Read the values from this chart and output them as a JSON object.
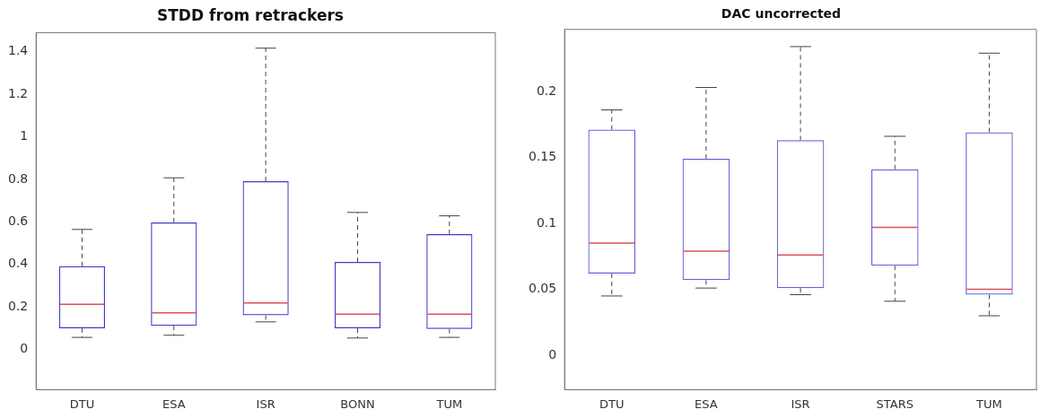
{
  "chart_data": [
    {
      "type": "box",
      "title": "STDD from retrackers",
      "categories": [
        "DTU",
        "ESA",
        "ISR",
        "BONN",
        "TUM"
      ],
      "color": "#3c3cc8",
      "boxes": [
        {
          "low": 0.056,
          "q1": 0.099,
          "median": 0.212,
          "q3": 0.391,
          "high": 0.564
        },
        {
          "low": 0.066,
          "q1": 0.111,
          "median": 0.172,
          "q3": 0.597,
          "high": 0.807
        },
        {
          "low": 0.129,
          "q1": 0.16,
          "median": 0.218,
          "q3": 0.791,
          "high": 1.417
        },
        {
          "low": 0.053,
          "q1": 0.099,
          "median": 0.165,
          "q3": 0.411,
          "high": 0.644
        },
        {
          "low": 0.056,
          "q1": 0.096,
          "median": 0.165,
          "q3": 0.542,
          "high": 0.628
        }
      ],
      "ylim": [
        -0.19,
        1.49
      ],
      "yticks": [
        0,
        0.2,
        0.4,
        0.6,
        0.8,
        1,
        1.2,
        1.4
      ],
      "grid": false,
      "legend": false
    },
    {
      "type": "box",
      "title": "DAC uncorrected",
      "categories": [
        "DTU",
        "ESA",
        "ISR",
        "STARS",
        "TUM"
      ],
      "color": "#6464dc",
      "boxes": [
        {
          "low": 0.045,
          "q1": 0.062,
          "median": 0.085,
          "q3": 0.171,
          "high": 0.186
        },
        {
          "low": 0.051,
          "q1": 0.057,
          "median": 0.079,
          "q3": 0.149,
          "high": 0.203
        },
        {
          "low": 0.046,
          "q1": 0.051,
          "median": 0.076,
          "q3": 0.163,
          "high": 0.234
        },
        {
          "low": 0.041,
          "q1": 0.068,
          "median": 0.097,
          "q3": 0.141,
          "high": 0.166
        },
        {
          "low": 0.03,
          "q1": 0.046,
          "median": 0.05,
          "q3": 0.169,
          "high": 0.229
        }
      ],
      "ylim": [
        -0.026,
        0.247
      ],
      "yticks": [
        0,
        0.05,
        0.1,
        0.15,
        0.2
      ],
      "grid": false,
      "legend": false
    }
  ]
}
